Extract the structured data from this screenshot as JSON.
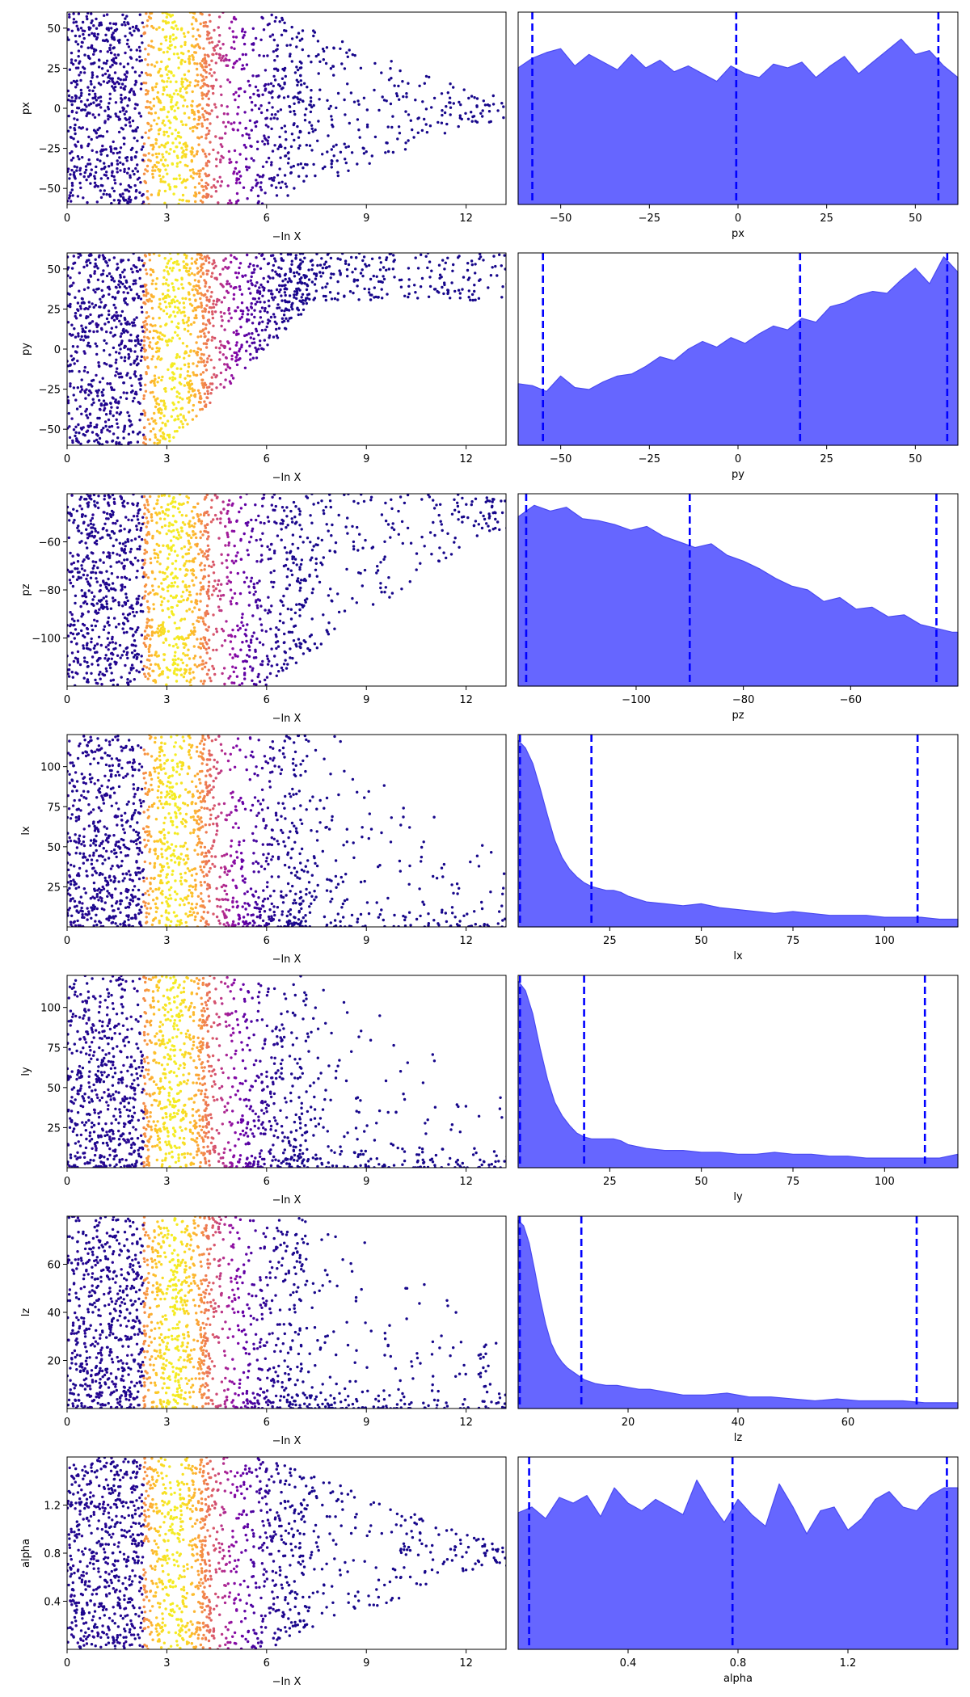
{
  "colors": {
    "kde_fill": "#6666ff",
    "kde_line": "#4a4af0",
    "quantile_line": "#0000ff",
    "cmap": [
      "#0d0887",
      "#46039f",
      "#7201a8",
      "#9c179e",
      "#bd3786",
      "#d8576b",
      "#ed7953",
      "#fb9f3a",
      "#fdca26",
      "#f0f921"
    ]
  },
  "chart_data": [
    {
      "type": "scatter",
      "panel": "trace",
      "ylabel": "px",
      "xlabel": "−ln X",
      "xlim": [
        0,
        13.2
      ],
      "ylim": [
        -60,
        60
      ],
      "xticks": [
        0,
        3,
        6,
        9,
        12
      ],
      "yticks": [
        50,
        25,
        0,
        -25,
        -50
      ],
      "ytick_labels": [
        "50",
        "25",
        "0",
        "−25",
        "−50"
      ],
      "trend": "flat"
    },
    {
      "type": "area",
      "panel": "posterior",
      "xlabel": "px",
      "xlim": [
        -62,
        62
      ],
      "xticks": [
        -50,
        -25,
        0,
        25,
        50
      ],
      "xtick_labels": [
        "−50",
        "−25",
        "0",
        "25",
        "50"
      ],
      "quantiles": [
        -58,
        -0.5,
        56.5
      ],
      "kde": {
        "x": [
          -62,
          -58,
          -54,
          -50,
          -46,
          -42,
          -38,
          -34,
          -30,
          -26,
          -22,
          -18,
          -14,
          -10,
          -6,
          -2,
          2,
          6,
          10,
          14,
          18,
          22,
          26,
          30,
          34,
          38,
          42,
          46,
          50,
          54,
          58,
          62
        ],
        "y": [
          0.71,
          0.76,
          0.79,
          0.81,
          0.72,
          0.78,
          0.74,
          0.7,
          0.78,
          0.71,
          0.75,
          0.69,
          0.72,
          0.68,
          0.64,
          0.72,
          0.68,
          0.66,
          0.73,
          0.71,
          0.74,
          0.66,
          0.72,
          0.77,
          0.68,
          0.74,
          0.8,
          0.86,
          0.78,
          0.8,
          0.72,
          0.66
        ]
      }
    },
    {
      "type": "scatter",
      "panel": "trace",
      "ylabel": "py",
      "xlabel": "−ln X",
      "xlim": [
        0,
        13.2
      ],
      "ylim": [
        -60,
        60
      ],
      "xticks": [
        0,
        3,
        6,
        9,
        12
      ],
      "yticks": [
        50,
        25,
        0,
        -25,
        -50
      ],
      "ytick_labels": [
        "50",
        "25",
        "0",
        "−25",
        "−50"
      ],
      "trend": "up"
    },
    {
      "type": "area",
      "panel": "posterior",
      "xlabel": "py",
      "xlim": [
        -62,
        62
      ],
      "xticks": [
        -50,
        -25,
        0,
        25,
        50
      ],
      "xtick_labels": [
        "−50",
        "−25",
        "0",
        "25",
        "50"
      ],
      "quantiles": [
        -55,
        17.5,
        59
      ],
      "kde": {
        "x": [
          -62,
          -58,
          -54,
          -50,
          -46,
          -42,
          -38,
          -34,
          -30,
          -26,
          -22,
          -18,
          -14,
          -10,
          -6,
          -2,
          2,
          6,
          10,
          14,
          18,
          22,
          26,
          30,
          34,
          38,
          42,
          46,
          50,
          54,
          58,
          62
        ],
        "y": [
          0.32,
          0.31,
          0.28,
          0.36,
          0.3,
          0.29,
          0.33,
          0.36,
          0.37,
          0.41,
          0.46,
          0.44,
          0.5,
          0.54,
          0.51,
          0.56,
          0.53,
          0.58,
          0.62,
          0.6,
          0.66,
          0.64,
          0.72,
          0.74,
          0.78,
          0.8,
          0.79,
          0.86,
          0.92,
          0.84,
          0.98,
          0.9
        ]
      }
    },
    {
      "type": "scatter",
      "panel": "trace",
      "ylabel": "pz",
      "xlabel": "−ln X",
      "xlim": [
        0,
        13.2
      ],
      "ylim": [
        -120,
        -40
      ],
      "xticks": [
        0,
        3,
        6,
        9,
        12
      ],
      "yticks": [
        -60,
        -80,
        -100
      ],
      "ytick_labels": [
        "−60",
        "−80",
        "−100"
      ],
      "trend": "down"
    },
    {
      "type": "area",
      "panel": "posterior",
      "xlabel": "pz",
      "xlim": [
        -122,
        -40
      ],
      "xticks": [
        -100,
        -80,
        -60
      ],
      "xtick_labels": [
        "−100",
        "−80",
        "−60"
      ],
      "quantiles": [
        -120.5,
        -90,
        -44
      ],
      "kde": {
        "x": [
          -122,
          -119,
          -116,
          -113,
          -110,
          -107,
          -104,
          -101,
          -98,
          -95,
          -92,
          -89,
          -86,
          -83,
          -80,
          -77,
          -74,
          -71,
          -68,
          -65,
          -62,
          -59,
          -56,
          -53,
          -50,
          -47,
          -44,
          -41,
          -40
        ],
        "y": [
          0.88,
          0.94,
          0.91,
          0.93,
          0.87,
          0.86,
          0.84,
          0.81,
          0.83,
          0.78,
          0.75,
          0.72,
          0.74,
          0.68,
          0.65,
          0.61,
          0.56,
          0.52,
          0.5,
          0.44,
          0.46,
          0.4,
          0.41,
          0.36,
          0.37,
          0.32,
          0.3,
          0.28,
          0.28
        ]
      }
    },
    {
      "type": "scatter",
      "panel": "trace",
      "ylabel": "lx",
      "xlabel": "−ln X",
      "xlim": [
        0,
        13.2
      ],
      "ylim": [
        0,
        120
      ],
      "xticks": [
        0,
        3,
        6,
        9,
        12
      ],
      "yticks": [
        100,
        75,
        50,
        25
      ],
      "ytick_labels": [
        "100",
        "75",
        "50",
        "25"
      ],
      "trend": "tail"
    },
    {
      "type": "area",
      "panel": "posterior",
      "xlabel": "lx",
      "xlim": [
        0,
        120
      ],
      "xticks": [
        25,
        50,
        75,
        100
      ],
      "xtick_labels": [
        "25",
        "50",
        "75",
        "100"
      ],
      "quantiles": [
        0.5,
        20,
        109
      ],
      "kde": {
        "x": [
          0,
          2,
          4,
          6,
          8,
          10,
          12,
          14,
          16,
          18,
          20,
          22,
          24,
          26,
          28,
          30,
          35,
          40,
          45,
          50,
          55,
          60,
          65,
          70,
          75,
          80,
          85,
          90,
          95,
          100,
          105,
          110,
          115,
          120
        ],
        "y": [
          0.97,
          0.93,
          0.85,
          0.72,
          0.58,
          0.45,
          0.36,
          0.3,
          0.26,
          0.23,
          0.21,
          0.2,
          0.19,
          0.19,
          0.18,
          0.16,
          0.13,
          0.12,
          0.11,
          0.12,
          0.1,
          0.09,
          0.08,
          0.07,
          0.08,
          0.07,
          0.06,
          0.06,
          0.06,
          0.05,
          0.05,
          0.05,
          0.04,
          0.04
        ]
      }
    },
    {
      "type": "scatter",
      "panel": "trace",
      "ylabel": "ly",
      "xlabel": "−ln X",
      "xlim": [
        0,
        13.2
      ],
      "ylim": [
        0,
        120
      ],
      "xticks": [
        0,
        3,
        6,
        9,
        12
      ],
      "yticks": [
        100,
        75,
        50,
        25
      ],
      "ytick_labels": [
        "100",
        "75",
        "50",
        "25"
      ],
      "trend": "tail"
    },
    {
      "type": "area",
      "panel": "posterior",
      "xlabel": "ly",
      "xlim": [
        0,
        120
      ],
      "xticks": [
        25,
        50,
        75,
        100
      ],
      "xtick_labels": [
        "25",
        "50",
        "75",
        "100"
      ],
      "quantiles": [
        0.5,
        18,
        111
      ],
      "kde": {
        "x": [
          0,
          2,
          4,
          6,
          8,
          10,
          12,
          14,
          16,
          18,
          20,
          22,
          24,
          26,
          28,
          30,
          35,
          40,
          45,
          50,
          55,
          60,
          65,
          70,
          75,
          80,
          85,
          90,
          95,
          100,
          105,
          110,
          115,
          120
        ],
        "y": [
          0.97,
          0.92,
          0.8,
          0.62,
          0.46,
          0.34,
          0.27,
          0.22,
          0.18,
          0.16,
          0.15,
          0.15,
          0.15,
          0.15,
          0.14,
          0.12,
          0.1,
          0.09,
          0.09,
          0.08,
          0.08,
          0.07,
          0.07,
          0.08,
          0.07,
          0.07,
          0.06,
          0.06,
          0.05,
          0.05,
          0.05,
          0.05,
          0.05,
          0.07
        ]
      }
    },
    {
      "type": "scatter",
      "panel": "trace",
      "ylabel": "lz",
      "xlabel": "−ln X",
      "xlim": [
        0,
        13.2
      ],
      "ylim": [
        0,
        80
      ],
      "xticks": [
        0,
        3,
        6,
        9,
        12
      ],
      "yticks": [
        60,
        40,
        20
      ],
      "ytick_labels": [
        "60",
        "40",
        "20"
      ],
      "trend": "tail"
    },
    {
      "type": "area",
      "panel": "posterior",
      "xlabel": "lz",
      "xlim": [
        0,
        80
      ],
      "xticks": [
        20,
        40,
        60
      ],
      "xtick_labels": [
        "20",
        "40",
        "60"
      ],
      "quantiles": [
        0.3,
        11.5,
        72.5
      ],
      "kde": {
        "x": [
          0,
          1,
          2,
          3,
          4,
          5,
          6,
          7,
          8,
          9,
          10,
          12,
          14,
          16,
          18,
          20,
          22,
          24,
          26,
          28,
          30,
          34,
          38,
          42,
          46,
          50,
          54,
          58,
          62,
          66,
          70,
          74,
          78,
          80
        ],
        "y": [
          0.98,
          0.95,
          0.86,
          0.72,
          0.57,
          0.44,
          0.34,
          0.28,
          0.24,
          0.21,
          0.19,
          0.15,
          0.13,
          0.12,
          0.12,
          0.11,
          0.1,
          0.1,
          0.09,
          0.08,
          0.07,
          0.07,
          0.08,
          0.06,
          0.06,
          0.05,
          0.04,
          0.05,
          0.04,
          0.04,
          0.04,
          0.03,
          0.03,
          0.03
        ]
      }
    },
    {
      "type": "scatter",
      "panel": "trace",
      "ylabel": "alpha",
      "xlabel": "−ln X",
      "xlim": [
        0,
        13.2
      ],
      "ylim": [
        0,
        1.6
      ],
      "xticks": [
        0,
        3,
        6,
        9,
        12
      ],
      "yticks": [
        1.2,
        0.8,
        0.4
      ],
      "ytick_labels": [
        "1.2",
        "0.8",
        "0.4"
      ],
      "trend": "flat"
    },
    {
      "type": "area",
      "panel": "posterior",
      "xlabel": "alpha",
      "xlim": [
        0,
        1.6
      ],
      "xticks": [
        0.4,
        0.8,
        1.2
      ],
      "xtick_labels": [
        "0.4",
        "0.8",
        "1.2"
      ],
      "quantiles": [
        0.04,
        0.78,
        1.56
      ],
      "kde": {
        "x": [
          0,
          0.05,
          0.1,
          0.15,
          0.2,
          0.25,
          0.3,
          0.35,
          0.4,
          0.45,
          0.5,
          0.55,
          0.6,
          0.65,
          0.7,
          0.75,
          0.8,
          0.85,
          0.9,
          0.95,
          1.0,
          1.05,
          1.1,
          1.15,
          1.2,
          1.25,
          1.3,
          1.35,
          1.4,
          1.45,
          1.5,
          1.55,
          1.6
        ],
        "y": [
          0.71,
          0.74,
          0.68,
          0.79,
          0.76,
          0.8,
          0.69,
          0.84,
          0.76,
          0.72,
          0.78,
          0.74,
          0.7,
          0.88,
          0.76,
          0.66,
          0.78,
          0.7,
          0.64,
          0.86,
          0.74,
          0.6,
          0.72,
          0.74,
          0.62,
          0.68,
          0.78,
          0.82,
          0.74,
          0.72,
          0.8,
          0.84,
          0.84
        ]
      }
    }
  ]
}
